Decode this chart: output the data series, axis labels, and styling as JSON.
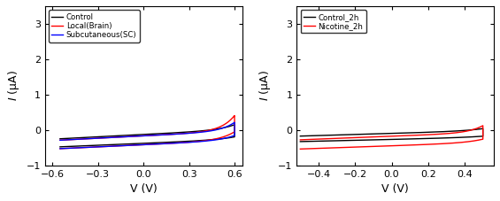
{
  "left": {
    "xlabel": "V (V)",
    "ylabel": "$I$ (μA)",
    "xlim": [
      -0.65,
      0.65
    ],
    "ylim": [
      -1.0,
      3.5
    ],
    "yticks": [
      -1,
      0,
      1,
      2,
      3
    ],
    "xticks": [
      -0.6,
      -0.3,
      0.0,
      0.3,
      0.6
    ],
    "legend": [
      "Control",
      "Local(Brain)",
      "Subcutaneous(SC)"
    ],
    "colors": [
      "black",
      "red",
      "blue"
    ]
  },
  "right": {
    "xlabel": "V (V)",
    "ylabel": "$I$ (μA)",
    "xlim": [
      -0.52,
      0.56
    ],
    "ylim": [
      -1.0,
      3.5
    ],
    "yticks": [
      -1,
      0,
      1,
      2,
      3
    ],
    "xticks": [
      -0.4,
      -0.2,
      0.0,
      0.2,
      0.4
    ],
    "legend": [
      "Control_2h",
      "Nicotine_2h"
    ],
    "colors": [
      "black",
      "red"
    ]
  }
}
